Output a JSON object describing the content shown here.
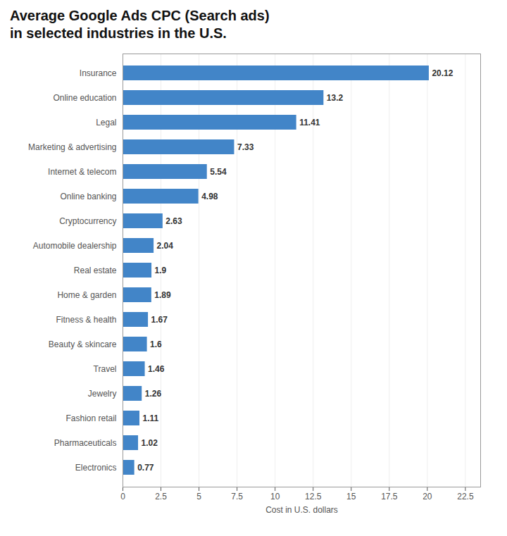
{
  "chart_data": {
    "type": "bar",
    "title": "Average Google Ads CPC (Search ads)",
    "subtitle": "in selected industries in the U.S.",
    "orientation": "horizontal",
    "categories": [
      "Insurance",
      "Online education",
      "Legal",
      "Marketing & advertising",
      "Internet & telecom",
      "Online banking",
      "Cryptocurrency",
      "Automobile dealership",
      "Real estate",
      "Home & garden",
      "Fitness & health",
      "Beauty & skincare",
      "Travel",
      "Jewelry",
      "Fashion retail",
      "Pharmaceuticals",
      "Electronics"
    ],
    "values": [
      20.12,
      13.2,
      11.41,
      7.33,
      5.54,
      4.98,
      2.63,
      2.04,
      1.9,
      1.89,
      1.67,
      1.6,
      1.46,
      1.26,
      1.11,
      1.02,
      0.77
    ],
    "color": "#4285c8",
    "xlabel": "Cost in U.S. dollars",
    "xlim": [
      0,
      23.5
    ],
    "xticks": [
      0,
      2.5,
      5,
      7.5,
      10,
      12.5,
      15,
      17.5,
      20,
      22.5
    ],
    "grid": true,
    "data_labels": true
  }
}
